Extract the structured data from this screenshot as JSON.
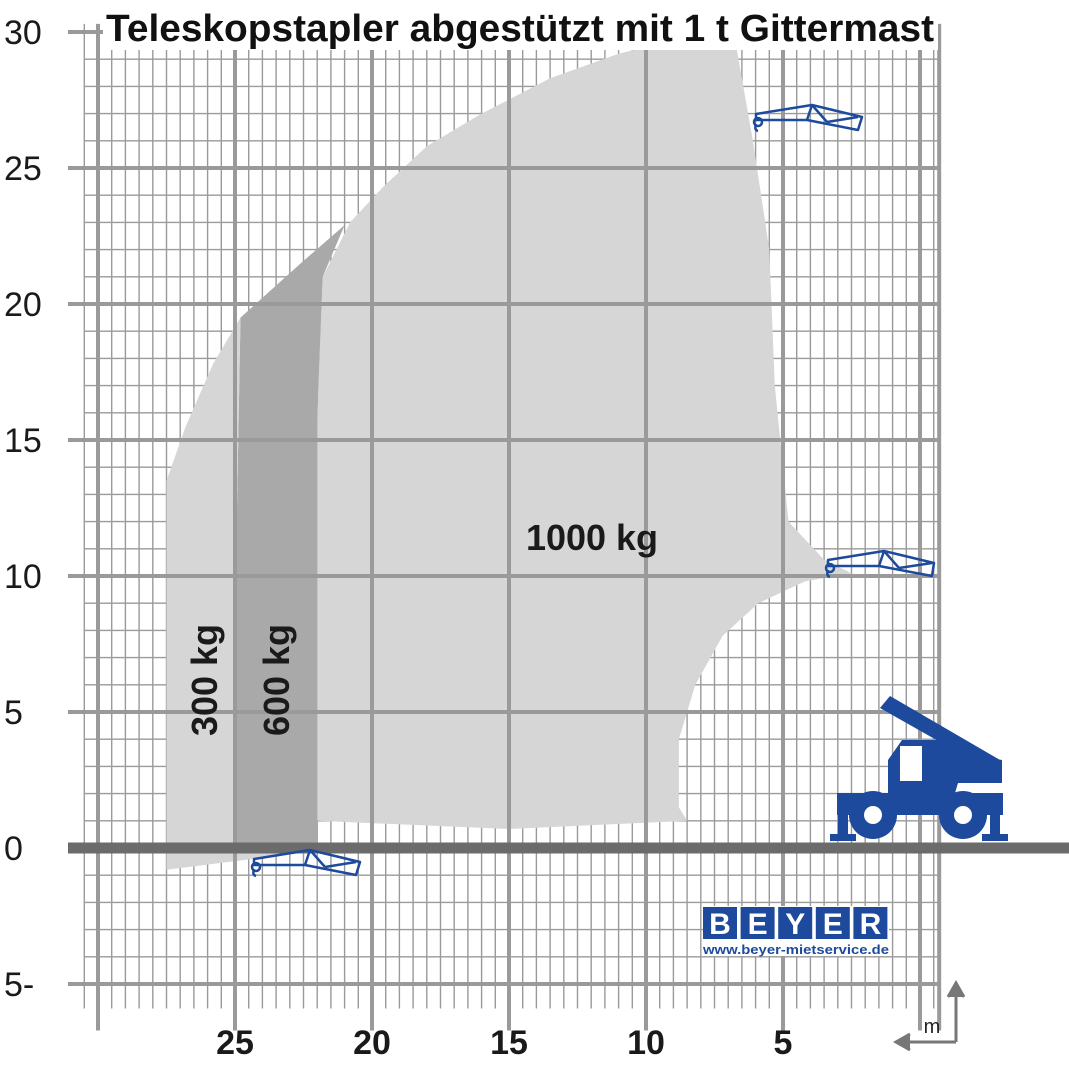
{
  "chart_data": {
    "type": "area",
    "title": "Teleskopstapler abgestützt mit 1 t Gittermast",
    "x_unit": "m",
    "x_reversed": true,
    "xlim": [
      0,
      30
    ],
    "ylim": [
      -5,
      30
    ],
    "x_ticks": [
      "25",
      "20",
      "15",
      "10",
      "5"
    ],
    "y_ticks": [
      "30",
      "25",
      "20",
      "15",
      "10",
      "5",
      "0",
      "5-"
    ],
    "grid": true,
    "zones": [
      {
        "label": "1000 kg",
        "points": [
          [
            2.5,
            10.1
          ],
          [
            3.5,
            10.6
          ],
          [
            4.8,
            12
          ],
          [
            5.3,
            17
          ],
          [
            5.5,
            22
          ],
          [
            6.1,
            26
          ],
          [
            6.8,
            30
          ],
          [
            9,
            29.7
          ],
          [
            11,
            29.2
          ],
          [
            13.5,
            28.3
          ],
          [
            16,
            27
          ],
          [
            18,
            25.8
          ],
          [
            19.6,
            24.3
          ],
          [
            20.8,
            23
          ],
          [
            21.8,
            21
          ],
          [
            22,
            15.8
          ],
          [
            22,
            1
          ],
          [
            15,
            0.7
          ],
          [
            8.5,
            1
          ],
          [
            8.8,
            1.5
          ],
          [
            8.8,
            4
          ],
          [
            8.2,
            6
          ],
          [
            7.2,
            7.8
          ],
          [
            5.9,
            9
          ],
          [
            4.2,
            9.8
          ]
        ]
      },
      {
        "label": "600 kg",
        "points": [
          [
            24.8,
            19.5
          ],
          [
            22.6,
            21.5
          ],
          [
            21,
            22.9
          ],
          [
            21.8,
            21
          ],
          [
            22,
            15.8
          ],
          [
            22,
            0
          ],
          [
            25,
            0
          ],
          [
            25,
            8.5
          ]
        ]
      },
      {
        "label": "300 kg",
        "points": [
          [
            27.5,
            13.5
          ],
          [
            26.8,
            15.5
          ],
          [
            25.8,
            17.8
          ],
          [
            24.8,
            19.5
          ],
          [
            25,
            8.5
          ],
          [
            25,
            0
          ],
          [
            22,
            0
          ],
          [
            22,
            -0.1
          ],
          [
            27.5,
            -0.8
          ]
        ]
      }
    ]
  },
  "logo": {
    "letters": [
      "B",
      "E",
      "Y",
      "E",
      "R"
    ],
    "url": "www.beyer-mietservice.de"
  },
  "colors": {
    "grid": "#9a9a9a",
    "ground": "#6b6b6b",
    "zone_1000": "#d6d6d6",
    "zone_600": "#a9a9a9",
    "zone_300": "#d6d6d6",
    "machine_blue": "#1d4a9c"
  },
  "icons": [
    "hook-icon",
    "telehandler-icon",
    "axis-arrow-icon"
  ]
}
